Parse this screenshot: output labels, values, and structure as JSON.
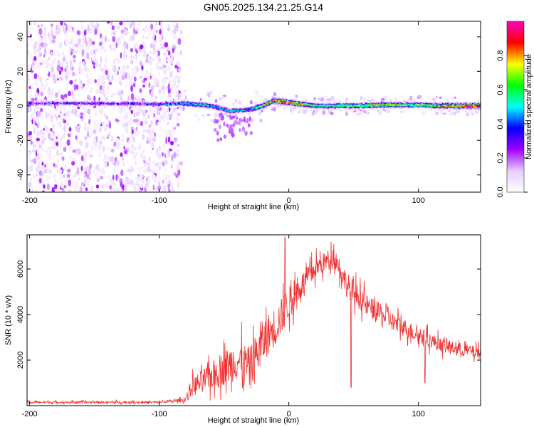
{
  "title": "GN05.2025.134.21.25.G14",
  "chart_data": [
    {
      "type": "heatmap",
      "name": "spectrogram",
      "xlabel": "Height of straight line (km)",
      "ylabel": "Frequency (Hz)",
      "xlim": [
        -202,
        148
      ],
      "ylim": [
        -50,
        49
      ],
      "x_ticks": [
        -200,
        -100,
        0,
        100
      ],
      "y_ticks": [
        -40,
        -20,
        0,
        20,
        40
      ],
      "colorbar": {
        "label": "Normalized spectral amplitude",
        "range": [
          0,
          1
        ],
        "ticks": [
          "0.0",
          "0.2",
          "0.4",
          "0.6",
          "0.8"
        ],
        "colors": [
          "#ffffff",
          "#e6ccff",
          "#a000ff",
          "#0000ff",
          "#00ffff",
          "#00ff00",
          "#ffff00",
          "#ff0000",
          "#ff00c0"
        ]
      },
      "scatter_region_x": [
        -202,
        -83
      ],
      "scatter_region_freq": [
        -50,
        49
      ],
      "dominant_line": [
        {
          "x": -200,
          "freq": 1.5,
          "amp": 0.3
        },
        {
          "x": -150,
          "freq": 1.5,
          "amp": 0.3
        },
        {
          "x": -100,
          "freq": 1.0,
          "amp": 0.35
        },
        {
          "x": -80,
          "freq": 1.5,
          "amp": 0.45
        },
        {
          "x": -60,
          "freq": 0.0,
          "amp": 0.5
        },
        {
          "x": -45,
          "freq": -3.0,
          "amp": 0.45
        },
        {
          "x": -30,
          "freq": -2.0,
          "amp": 0.45
        },
        {
          "x": -20,
          "freq": 0.0,
          "amp": 0.7
        },
        {
          "x": -12,
          "freq": 3.0,
          "amp": 0.85
        },
        {
          "x": 0,
          "freq": 2.0,
          "amp": 0.9
        },
        {
          "x": 20,
          "freq": 0.0,
          "amp": 0.6
        },
        {
          "x": 50,
          "freq": 0.0,
          "amp": 0.6
        },
        {
          "x": 70,
          "freq": 0.5,
          "amp": 0.75
        },
        {
          "x": 100,
          "freq": 0.5,
          "amp": 0.6
        },
        {
          "x": 120,
          "freq": 0.0,
          "amp": 0.85
        },
        {
          "x": 148,
          "freq": 0.0,
          "amp": 0.9
        }
      ]
    },
    {
      "type": "line",
      "name": "snr",
      "xlabel": "Height of straight line (km)",
      "ylabel": "SNR (10 * v/v)",
      "xlim": [
        -202,
        148
      ],
      "ylim": [
        0,
        7500
      ],
      "x_ticks": [
        -200,
        -100,
        0,
        100
      ],
      "y_ticks": [
        2000,
        4000,
        6000
      ],
      "color": "#ee3333",
      "envelope": [
        {
          "x": -202,
          "mean": 150,
          "amp": 80
        },
        {
          "x": -100,
          "mean": 150,
          "amp": 80
        },
        {
          "x": -80,
          "mean": 250,
          "amp": 150
        },
        {
          "x": -75,
          "mean": 800,
          "amp": 700
        },
        {
          "x": -60,
          "mean": 1300,
          "amp": 1000
        },
        {
          "x": -40,
          "mean": 2000,
          "amp": 1500
        },
        {
          "x": -30,
          "mean": 1700,
          "amp": 1500
        },
        {
          "x": -20,
          "mean": 2800,
          "amp": 1600
        },
        {
          "x": -8,
          "mean": 3700,
          "amp": 1400
        },
        {
          "x": 0,
          "mean": 4500,
          "amp": 1200
        },
        {
          "x": 10,
          "mean": 5300,
          "amp": 900
        },
        {
          "x": 20,
          "mean": 6000,
          "amp": 800
        },
        {
          "x": 35,
          "mean": 6600,
          "amp": 700
        },
        {
          "x": 45,
          "mean": 5300,
          "amp": 900
        },
        {
          "x": 60,
          "mean": 4400,
          "amp": 800
        },
        {
          "x": 80,
          "mean": 3700,
          "amp": 700
        },
        {
          "x": 100,
          "mean": 3100,
          "amp": 600
        },
        {
          "x": 120,
          "mean": 2600,
          "amp": 500
        },
        {
          "x": 148,
          "mean": 2300,
          "amp": 450
        }
      ],
      "spikes": [
        {
          "x": -3,
          "y": 7400
        },
        {
          "x": 48,
          "y": 800
        },
        {
          "x": 105,
          "y": 1000
        }
      ]
    }
  ]
}
